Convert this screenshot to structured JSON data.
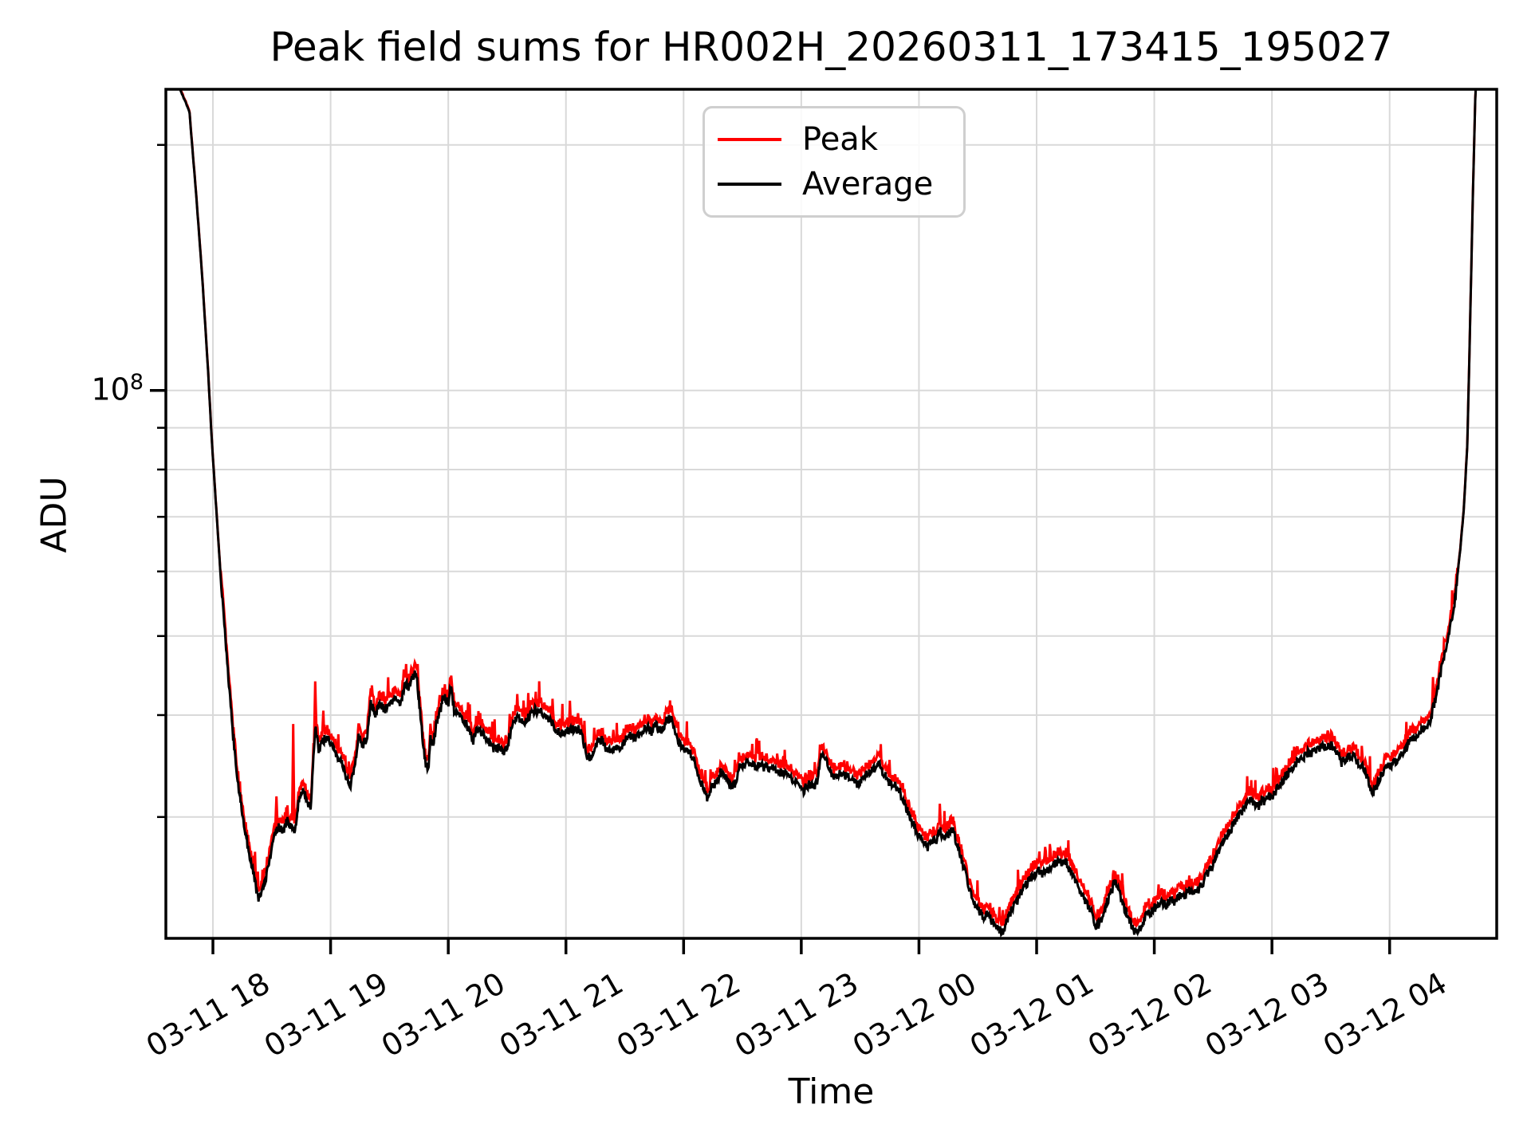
{
  "chart": {
    "title": "Peak field sums for HR002H_20260311_173415_195027",
    "xlabel": "Time",
    "ylabel": "ADU",
    "ytick_base": "10",
    "ytick_exp": "8",
    "legend": [
      {
        "label": "Peak",
        "color": "#ff0000"
      },
      {
        "label": "Average",
        "color": "#000000"
      }
    ]
  },
  "chart_data": {
    "type": "line",
    "title": "Peak field sums for HR002H_20260311_173415_195027",
    "xlabel": "Time",
    "ylabel": "ADU",
    "y_scale": "log",
    "grid": true,
    "legend_position": "upper center",
    "background": "#ffffff",
    "grid_color": "#d9d9d9",
    "axis_color": "#000000",
    "time_unit": "hours since 2026-03-11 17:00",
    "value_unit_multiplier": 1000000,
    "xlim_t": [
      0.6,
      11.91
    ],
    "ylim": [
      21300000,
      234000000
    ],
    "y_major_ticks": [
      {
        "value_M": 100,
        "label": "10^8"
      }
    ],
    "y_minor_ticks_M": [
      30,
      40,
      50,
      60,
      70,
      80,
      90,
      200
    ],
    "x_ticks": [
      {
        "t": 1,
        "label": "03-11 18"
      },
      {
        "t": 2,
        "label": "03-11 19"
      },
      {
        "t": 3,
        "label": "03-11 20"
      },
      {
        "t": 4,
        "label": "03-11 21"
      },
      {
        "t": 5,
        "label": "03-11 22"
      },
      {
        "t": 6,
        "label": "03-11 23"
      },
      {
        "t": 7,
        "label": "03-12 00"
      },
      {
        "t": 8,
        "label": "03-12 01"
      },
      {
        "t": 9,
        "label": "03-12 02"
      },
      {
        "t": 10,
        "label": "03-12 03"
      },
      {
        "t": 11,
        "label": "03-12 04"
      }
    ],
    "series": [
      {
        "name": "Peak",
        "color": "#ff0000",
        "line_width": 3
      },
      {
        "name": "Average",
        "color": "#000000",
        "line_width": 3
      }
    ],
    "average_keypoints_t_vM": [
      [
        0.6,
        260
      ],
      [
        0.72,
        234
      ],
      [
        0.8,
        220
      ],
      [
        0.86,
        172
      ],
      [
        0.91,
        137
      ],
      [
        0.96,
        105
      ],
      [
        0.99,
        87
      ],
      [
        1.03,
        71
      ],
      [
        1.07,
        58
      ],
      [
        1.12,
        46.5
      ],
      [
        1.17,
        38
      ],
      [
        1.21,
        33.2
      ],
      [
        1.26,
        29.7
      ],
      [
        1.3,
        27.4
      ],
      [
        1.35,
        25.4
      ],
      [
        1.39,
        23.7
      ],
      [
        1.43,
        24.5
      ],
      [
        1.46,
        25.7
      ],
      [
        1.5,
        27.6
      ],
      [
        1.53,
        28.7
      ],
      [
        1.56,
        29.3
      ],
      [
        1.6,
        28.7
      ],
      [
        1.63,
        29.7
      ],
      [
        1.66,
        29.1
      ],
      [
        1.7,
        29.0
      ],
      [
        1.73,
        31.5
      ],
      [
        1.77,
        32.3
      ],
      [
        1.8,
        31.4
      ],
      [
        1.83,
        30.8
      ],
      [
        1.87,
        38.6
      ],
      [
        1.9,
        36.3
      ],
      [
        1.93,
        37.1
      ],
      [
        1.97,
        37.7
      ],
      [
        2.0,
        36.7
      ],
      [
        2.06,
        35.7
      ],
      [
        2.1,
        34.7
      ],
      [
        2.15,
        33.2
      ],
      [
        2.17,
        32.7
      ],
      [
        2.21,
        35.1
      ],
      [
        2.24,
        38
      ],
      [
        2.27,
        36.7
      ],
      [
        2.31,
        37.6
      ],
      [
        2.34,
        41.3
      ],
      [
        2.38,
        40
      ],
      [
        2.42,
        41.3
      ],
      [
        2.46,
        40.6
      ],
      [
        2.51,
        41.6
      ],
      [
        2.56,
        42.1
      ],
      [
        2.6,
        41.3
      ],
      [
        2.63,
        43.8
      ],
      [
        2.67,
        43.2
      ],
      [
        2.69,
        44.5
      ],
      [
        2.73,
        45
      ],
      [
        2.77,
        38.9
      ],
      [
        2.8,
        35.3
      ],
      [
        2.83,
        34
      ],
      [
        2.85,
        37.7
      ],
      [
        2.87,
        36.5
      ],
      [
        2.9,
        39.1
      ],
      [
        2.93,
        40.4
      ],
      [
        2.96,
        42.3
      ],
      [
        3.0,
        41.3
      ],
      [
        3.02,
        43.7
      ],
      [
        3.05,
        40.6
      ],
      [
        3.09,
        39.7
      ],
      [
        3.12,
        39.7
      ],
      [
        3.17,
        38.6
      ],
      [
        3.21,
        37
      ],
      [
        3.24,
        38.6
      ],
      [
        3.29,
        38
      ],
      [
        3.34,
        37
      ],
      [
        3.39,
        36.3
      ],
      [
        3.44,
        36.5
      ],
      [
        3.48,
        36
      ],
      [
        3.51,
        36.9
      ],
      [
        3.55,
        39.5
      ],
      [
        3.59,
        39.6
      ],
      [
        3.64,
        39.1
      ],
      [
        3.68,
        39.7
      ],
      [
        3.73,
        40.6
      ],
      [
        3.78,
        40.4
      ],
      [
        3.82,
        40.2
      ],
      [
        3.87,
        39.3
      ],
      [
        3.91,
        38.6
      ],
      [
        3.95,
        38
      ],
      [
        4.0,
        38.3
      ],
      [
        4.06,
        38.3
      ],
      [
        4.12,
        38.4
      ],
      [
        4.15,
        37.1
      ],
      [
        4.18,
        35.7
      ],
      [
        4.22,
        35.3
      ],
      [
        4.27,
        37.1
      ],
      [
        4.31,
        37.4
      ],
      [
        4.34,
        36.4
      ],
      [
        4.39,
        36
      ],
      [
        4.42,
        36.7
      ],
      [
        4.45,
        36.5
      ],
      [
        4.5,
        37.1
      ],
      [
        4.54,
        37.8
      ],
      [
        4.59,
        37.4
      ],
      [
        4.63,
        38.1
      ],
      [
        4.68,
        38.7
      ],
      [
        4.73,
        38.1
      ],
      [
        4.75,
        39
      ],
      [
        4.78,
        38.6
      ],
      [
        4.81,
        38.3
      ],
      [
        4.85,
        39.3
      ],
      [
        4.9,
        39.7
      ],
      [
        4.93,
        38
      ],
      [
        4.96,
        36.9
      ],
      [
        5.0,
        36.4
      ],
      [
        5.05,
        36
      ],
      [
        5.08,
        35.5
      ],
      [
        5.11,
        34.1
      ],
      [
        5.14,
        33.4
      ],
      [
        5.17,
        32.5
      ],
      [
        5.2,
        31.6
      ],
      [
        5.23,
        32.5
      ],
      [
        5.27,
        33
      ],
      [
        5.29,
        33.4
      ],
      [
        5.32,
        34.1
      ],
      [
        5.34,
        33.7
      ],
      [
        5.38,
        33.2
      ],
      [
        5.4,
        32.6
      ],
      [
        5.44,
        33
      ],
      [
        5.47,
        34.5
      ],
      [
        5.51,
        34.8
      ],
      [
        5.54,
        34.9
      ],
      [
        5.57,
        34.8
      ],
      [
        5.61,
        34.5
      ],
      [
        5.65,
        34.7
      ],
      [
        5.68,
        34.5
      ],
      [
        5.72,
        34.5
      ],
      [
        5.76,
        34.4
      ],
      [
        5.8,
        34.1
      ],
      [
        5.83,
        34
      ],
      [
        5.86,
        33.9
      ],
      [
        5.9,
        33.5
      ],
      [
        5.93,
        33.3
      ],
      [
        5.97,
        33
      ],
      [
        6.0,
        32.6
      ],
      [
        6.02,
        32.3
      ],
      [
        6.05,
        32.8
      ],
      [
        6.08,
        33
      ],
      [
        6.1,
        32.6
      ],
      [
        6.14,
        33.2
      ],
      [
        6.16,
        35.5
      ],
      [
        6.19,
        35.7
      ],
      [
        6.22,
        34.9
      ],
      [
        6.25,
        34.1
      ],
      [
        6.28,
        33.7
      ],
      [
        6.32,
        33.9
      ],
      [
        6.35,
        33.7
      ],
      [
        6.39,
        33.7
      ],
      [
        6.42,
        33.5
      ],
      [
        6.44,
        33.2
      ],
      [
        6.47,
        32.8
      ],
      [
        6.49,
        33
      ],
      [
        6.53,
        33.7
      ],
      [
        6.56,
        33.9
      ],
      [
        6.6,
        34.1
      ],
      [
        6.63,
        34.5
      ],
      [
        6.66,
        34.9
      ],
      [
        6.69,
        34.1
      ],
      [
        6.73,
        33.4
      ],
      [
        6.76,
        32.8
      ],
      [
        6.79,
        32.8
      ],
      [
        6.83,
        32.5
      ],
      [
        6.85,
        31.7
      ],
      [
        6.88,
        31.2
      ],
      [
        6.92,
        30.1
      ],
      [
        6.95,
        29.5
      ],
      [
        6.98,
        28.7
      ],
      [
        7.02,
        28.5
      ],
      [
        7.05,
        27.9
      ],
      [
        7.08,
        27.5
      ],
      [
        7.12,
        28.2
      ],
      [
        7.15,
        27.9
      ],
      [
        7.17,
        29
      ],
      [
        7.2,
        28.5
      ],
      [
        7.22,
        28.2
      ],
      [
        7.25,
        28.6
      ],
      [
        7.29,
        28.8
      ],
      [
        7.31,
        28.2
      ],
      [
        7.34,
        27.3
      ],
      [
        7.38,
        26.1
      ],
      [
        7.41,
        25.2
      ],
      [
        7.44,
        24.1
      ],
      [
        7.48,
        23.3
      ],
      [
        7.51,
        23
      ],
      [
        7.55,
        22.6
      ],
      [
        7.58,
        22.8
      ],
      [
        7.61,
        22.5
      ],
      [
        7.65,
        22.2
      ],
      [
        7.67,
        21.9
      ],
      [
        7.71,
        21.7
      ],
      [
        7.74,
        22.3
      ],
      [
        7.77,
        22.8
      ],
      [
        7.81,
        23.3
      ],
      [
        7.84,
        23.7
      ],
      [
        7.88,
        24.4
      ],
      [
        7.91,
        24.8
      ],
      [
        7.94,
        25.2
      ],
      [
        7.98,
        25.5
      ],
      [
        8.01,
        25.8
      ],
      [
        8.05,
        25.6
      ],
      [
        8.08,
        26
      ],
      [
        8.11,
        25.8
      ],
      [
        8.15,
        26.3
      ],
      [
        8.18,
        26.4
      ],
      [
        8.22,
        26.4
      ],
      [
        8.25,
        26.4
      ],
      [
        8.27,
        26
      ],
      [
        8.3,
        25.6
      ],
      [
        8.34,
        25
      ],
      [
        8.37,
        24.4
      ],
      [
        8.41,
        23.7
      ],
      [
        8.44,
        23.2
      ],
      [
        8.47,
        22.8
      ],
      [
        8.51,
        22
      ],
      [
        8.54,
        22.3
      ],
      [
        8.58,
        23.3
      ],
      [
        8.61,
        23.8
      ],
      [
        8.64,
        24.4
      ],
      [
        8.66,
        25
      ],
      [
        8.69,
        24.8
      ],
      [
        8.72,
        23.8
      ],
      [
        8.74,
        23.3
      ],
      [
        8.78,
        22.6
      ],
      [
        8.81,
        22.1
      ],
      [
        8.85,
        21.5
      ],
      [
        8.88,
        22
      ],
      [
        8.91,
        22.4
      ],
      [
        8.95,
        23
      ],
      [
        8.97,
        22.7
      ],
      [
        9.0,
        23.2
      ],
      [
        9.03,
        23.4
      ],
      [
        9.07,
        23.6
      ],
      [
        9.1,
        23.4
      ],
      [
        9.14,
        23.7
      ],
      [
        9.17,
        23.6
      ],
      [
        9.2,
        24
      ],
      [
        9.24,
        23.9
      ],
      [
        9.27,
        24.2
      ],
      [
        9.3,
        24.4
      ],
      [
        9.34,
        24.3
      ],
      [
        9.37,
        24.4
      ],
      [
        9.41,
        24.8
      ],
      [
        9.44,
        25.4
      ],
      [
        9.47,
        25.8
      ],
      [
        9.51,
        26.4
      ],
      [
        9.54,
        27
      ],
      [
        9.58,
        27.8
      ],
      [
        9.61,
        28.4
      ],
      [
        9.64,
        28.8
      ],
      [
        9.68,
        29.5
      ],
      [
        9.71,
        30.1
      ],
      [
        9.75,
        30.5
      ],
      [
        9.78,
        31
      ],
      [
        9.81,
        31.5
      ],
      [
        9.85,
        31.2
      ],
      [
        9.88,
        30.8
      ],
      [
        9.9,
        31.2
      ],
      [
        9.92,
        31.5
      ],
      [
        9.94,
        31.2
      ],
      [
        9.96,
        31.7
      ],
      [
        9.99,
        31.9
      ],
      [
        10.01,
        31.8
      ],
      [
        10.05,
        32.6
      ],
      [
        10.08,
        33
      ],
      [
        10.1,
        33.4
      ],
      [
        10.13,
        33.9
      ],
      [
        10.17,
        34.3
      ],
      [
        10.2,
        34.8
      ],
      [
        10.24,
        35.3
      ],
      [
        10.27,
        35.6
      ],
      [
        10.3,
        35.9
      ],
      [
        10.34,
        36
      ],
      [
        10.37,
        36.3
      ],
      [
        10.4,
        36.4
      ],
      [
        10.44,
        36.7
      ],
      [
        10.47,
        36.5
      ],
      [
        10.5,
        36.7
      ],
      [
        10.54,
        36.3
      ],
      [
        10.57,
        35.5
      ],
      [
        10.59,
        34.9
      ],
      [
        10.62,
        35.3
      ],
      [
        10.65,
        35.5
      ],
      [
        10.69,
        35.7
      ],
      [
        10.71,
        35.3
      ],
      [
        10.74,
        34.9
      ],
      [
        10.78,
        34.4
      ],
      [
        10.8,
        33.9
      ],
      [
        10.82,
        33.2
      ],
      [
        10.84,
        32.5
      ],
      [
        10.86,
        32.1
      ],
      [
        10.89,
        32.7
      ],
      [
        10.91,
        33.4
      ],
      [
        10.93,
        33.9
      ],
      [
        10.96,
        34.3
      ],
      [
        11.0,
        34.7
      ],
      [
        11.03,
        34.8
      ],
      [
        11.05,
        35
      ],
      [
        11.07,
        35.3
      ],
      [
        11.09,
        35.5
      ],
      [
        11.11,
        36
      ],
      [
        11.14,
        36.3
      ],
      [
        11.16,
        37
      ],
      [
        11.17,
        37.4
      ],
      [
        11.18,
        37.1
      ],
      [
        11.2,
        37.3
      ],
      [
        11.23,
        37.7
      ],
      [
        11.25,
        38
      ],
      [
        11.27,
        38.4
      ],
      [
        11.3,
        38.9
      ],
      [
        11.32,
        38.7
      ],
      [
        11.34,
        39.1
      ],
      [
        11.36,
        40.4
      ],
      [
        11.39,
        41.8
      ],
      [
        11.41,
        43.2
      ],
      [
        11.43,
        44.7
      ],
      [
        11.45,
        46.3
      ],
      [
        11.47,
        48
      ],
      [
        11.5,
        50
      ],
      [
        11.52,
        52
      ],
      [
        11.55,
        54.5
      ],
      [
        11.57,
        58.3
      ],
      [
        11.6,
        63.8
      ],
      [
        11.63,
        71.4
      ],
      [
        11.66,
        85.5
      ],
      [
        11.68,
        114
      ],
      [
        11.71,
        180
      ],
      [
        11.73,
        234
      ],
      [
        11.78,
        258
      ],
      [
        11.91,
        260
      ]
    ],
    "peak_spikes_t_vM": [
      [
        1.54,
        31.8
      ],
      [
        1.68,
        39
      ],
      [
        1.87,
        44
      ],
      [
        1.94,
        40.5
      ],
      [
        2.35,
        43.5
      ],
      [
        2.62,
        45.5
      ],
      [
        2.74,
        46.2
      ],
      [
        3.02,
        44.3
      ],
      [
        4.24,
        38.6
      ],
      [
        5.47,
        36
      ],
      [
        6.16,
        36.8
      ]
    ],
    "noise": {
      "seed": 42,
      "amp_log": 0.0055,
      "peak_offset_log": 0.0065,
      "peak_spike_prob": 0.07,
      "peak_spike_amp_log": 0.03,
      "smooth_above_M": 60
    }
  }
}
